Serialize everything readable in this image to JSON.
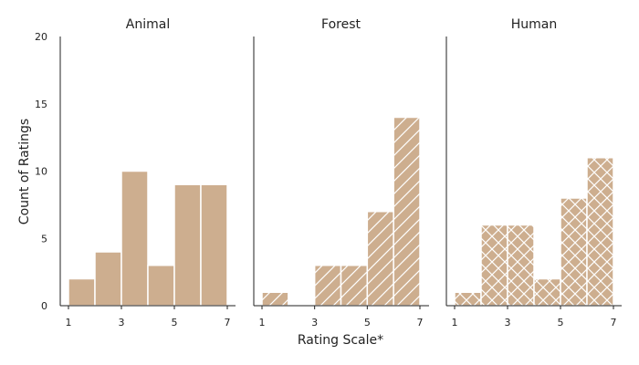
{
  "chart_data": {
    "type": "bar",
    "xlabel": "Rating Scale*",
    "ylabel": "Count of Ratings",
    "ylim": [
      0,
      20
    ],
    "yticks": [
      0,
      5,
      10,
      15,
      20
    ],
    "xticks": [
      1,
      3,
      5,
      7
    ],
    "bin_edges": [
      1,
      2,
      3,
      4,
      5,
      6,
      7
    ],
    "bar_color": "#cdae8f",
    "bar_edge_color": "#ffffff",
    "grid": false,
    "panels": [
      {
        "title": "Animal",
        "hatch": "none",
        "values": [
          2,
          4,
          10,
          3,
          9,
          9
        ]
      },
      {
        "title": "Forest",
        "hatch": "diagonal",
        "values": [
          1,
          0,
          3,
          3,
          7,
          14
        ]
      },
      {
        "title": "Human",
        "hatch": "crosshatch",
        "values": [
          1,
          6,
          6,
          2,
          8,
          11
        ]
      }
    ]
  }
}
